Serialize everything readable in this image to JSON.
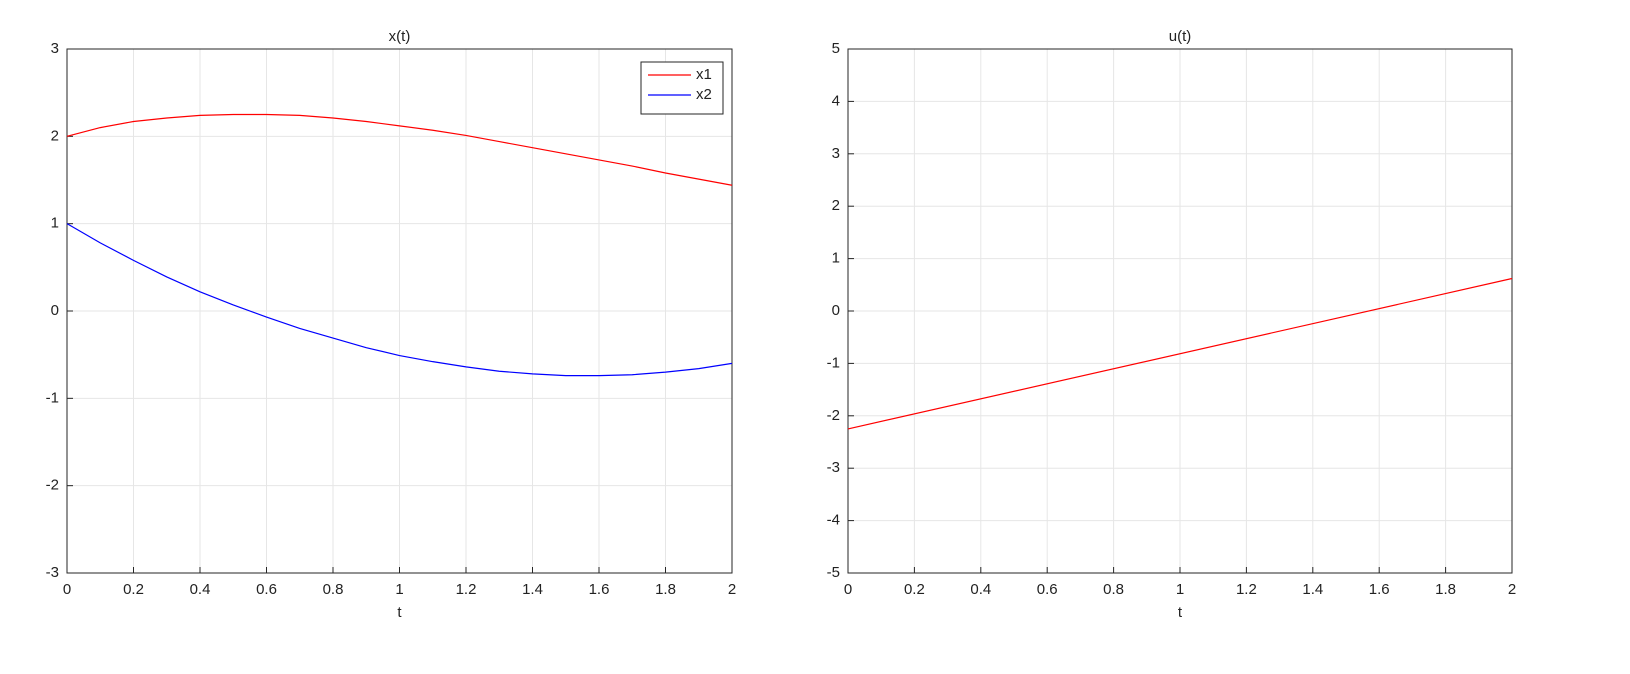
{
  "chart_data": [
    {
      "type": "line",
      "title": "x(t)",
      "x_label": "t",
      "x": [
        0,
        0.1,
        0.2,
        0.3,
        0.4,
        0.5,
        0.6,
        0.7,
        0.8,
        0.9,
        1,
        1.1,
        1.2,
        1.3,
        1.4,
        1.5,
        1.6,
        1.7,
        1.8,
        1.9,
        2
      ],
      "series": [
        {
          "name": "x1",
          "color": "#ff0000",
          "values": [
            2,
            2.1,
            2.17,
            2.21,
            2.24,
            2.25,
            2.25,
            2.24,
            2.21,
            2.17,
            2.12,
            2.07,
            2.01,
            1.94,
            1.87,
            1.8,
            1.73,
            1.66,
            1.58,
            1.51,
            1.44
          ]
        },
        {
          "name": "x2",
          "color": "#0000ff",
          "values": [
            1,
            0.78,
            0.58,
            0.39,
            0.22,
            0.07,
            -0.07,
            -0.2,
            -0.31,
            -0.42,
            -0.51,
            -0.58,
            -0.64,
            -0.69,
            -0.72,
            -0.74,
            -0.74,
            -0.73,
            -0.7,
            -0.66,
            -0.6
          ]
        }
      ],
      "xlim": [
        0,
        2
      ],
      "xticks": [
        0,
        0.2,
        0.4,
        0.6,
        0.8,
        1,
        1.2,
        1.4,
        1.6,
        1.8,
        2
      ],
      "ylim": [
        -3,
        3
      ],
      "yticks": [
        -3,
        -2,
        -1,
        0,
        1,
        2,
        3
      ],
      "grid": true,
      "legend": "northeast"
    },
    {
      "type": "line",
      "title": "u(t)",
      "x_label": "t",
      "x": [
        0,
        2
      ],
      "values": [
        -2.25,
        0.62
      ],
      "color": "#ff0000",
      "xlim": [
        0,
        2
      ],
      "xticks": [
        0,
        0.2,
        0.4,
        0.6,
        0.8,
        1,
        1.2,
        1.4,
        1.6,
        1.8,
        2
      ],
      "ylim": [
        -5,
        5
      ],
      "yticks": [
        -5,
        -4,
        -3,
        -2,
        -1,
        0,
        1,
        2,
        3,
        4,
        5
      ],
      "grid": true
    }
  ]
}
